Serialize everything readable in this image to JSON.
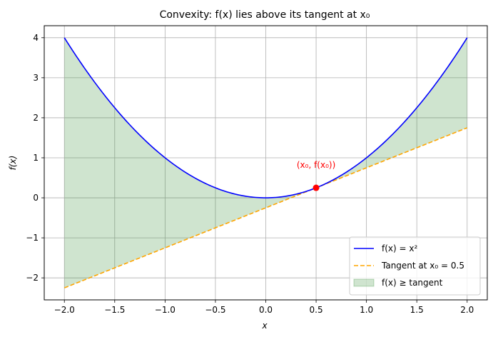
{
  "chart_data": {
    "type": "line",
    "title": "Convexity: f(x) lies above its tangent at x₀",
    "xlabel": "x",
    "ylabel": "f(x)",
    "xlim": [
      -2.2,
      2.2
    ],
    "ylim": [
      -2.55,
      4.3
    ],
    "xticks": [
      -2.0,
      -1.5,
      -1.0,
      -0.5,
      0.0,
      0.5,
      1.0,
      1.5,
      2.0
    ],
    "xtick_labels": [
      "−2.0",
      "−1.5",
      "−1.0",
      "−0.5",
      "0.0",
      "0.5",
      "1.0",
      "1.5",
      "2.0"
    ],
    "yticks": [
      -2,
      -1,
      0,
      1,
      2,
      3,
      4
    ],
    "ytick_labels": [
      "−2",
      "−1",
      "0",
      "1",
      "2",
      "3",
      "4"
    ],
    "grid": true,
    "legend_position": "bottom-right",
    "domain": [
      -2.0,
      2.0
    ],
    "series": [
      {
        "name": "f(x) = x²",
        "kind": "line",
        "style": "solid",
        "color": "#0000ff",
        "function": "x^2"
      },
      {
        "name": "Tangent at x₀ = 0.5",
        "kind": "line",
        "style": "dashed",
        "color": "#ffa500",
        "function": "x - 0.25"
      },
      {
        "name": "f(x) ≥  tangent",
        "kind": "fill_between",
        "color": "#2e8b2e",
        "opacity": 0.23
      }
    ],
    "point": {
      "x": 0.5,
      "y": 0.25,
      "color": "#ff0000",
      "label": "(x₀, f(x₀))"
    }
  }
}
